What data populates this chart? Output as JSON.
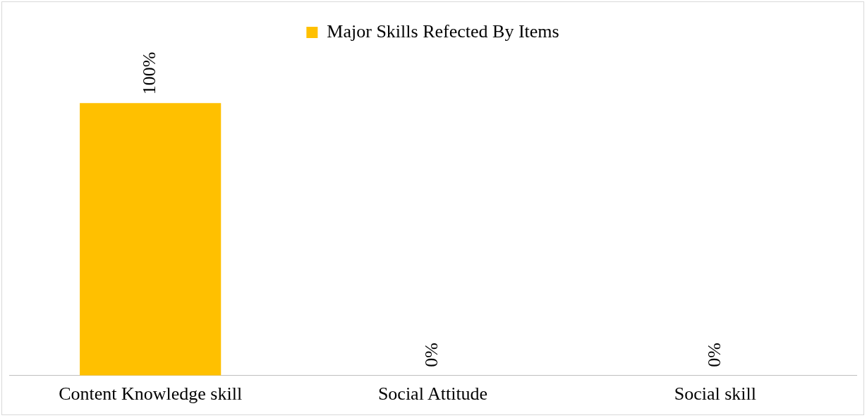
{
  "chart_data": {
    "type": "bar",
    "categories": [
      "Content Knowledge skill",
      "Social Attitude",
      "Social skill"
    ],
    "series": [
      {
        "name": "Major Skills Refected By Items",
        "color": "#ffc000",
        "values": [
          100,
          0,
          0
        ],
        "value_labels": [
          "100%",
          "0%",
          "0%"
        ]
      }
    ],
    "legend": "top",
    "grid": false,
    "tick_labels": "x"
  }
}
